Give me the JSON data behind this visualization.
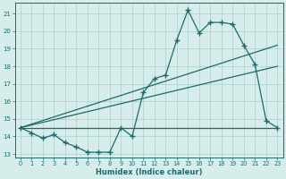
{
  "xlabel": "Humidex (Indice chaleur)",
  "bg_color": "#d7edeb",
  "grid_color": "#aacfcc",
  "line_color": "#1a6b6b",
  "xlim": [
    -0.5,
    23.5
  ],
  "ylim": [
    12.8,
    21.6
  ],
  "yticks": [
    13,
    14,
    15,
    16,
    17,
    18,
    19,
    20,
    21
  ],
  "xticks": [
    0,
    1,
    2,
    3,
    4,
    5,
    6,
    7,
    8,
    9,
    10,
    11,
    12,
    13,
    14,
    15,
    16,
    17,
    18,
    19,
    20,
    21,
    22,
    23
  ],
  "line1_x": [
    0,
    1,
    2,
    3,
    4,
    5,
    6,
    7,
    8,
    9,
    10,
    11,
    12,
    13,
    14,
    15,
    16,
    17,
    18,
    19,
    20,
    21,
    22,
    23
  ],
  "line1_y": [
    14.5,
    14.2,
    13.9,
    14.1,
    13.65,
    13.4,
    13.1,
    13.1,
    13.1,
    14.5,
    14.0,
    16.5,
    17.3,
    17.5,
    19.5,
    21.2,
    19.9,
    20.5,
    20.5,
    20.4,
    19.2,
    18.1,
    14.9,
    14.5
  ],
  "line2_x": [
    0,
    23
  ],
  "line2_y": [
    14.5,
    14.5
  ],
  "line3_x": [
    0,
    23
  ],
  "line3_y": [
    14.5,
    19.2
  ],
  "line4_x": [
    0,
    23
  ],
  "line4_y": [
    14.5,
    18.0
  ]
}
